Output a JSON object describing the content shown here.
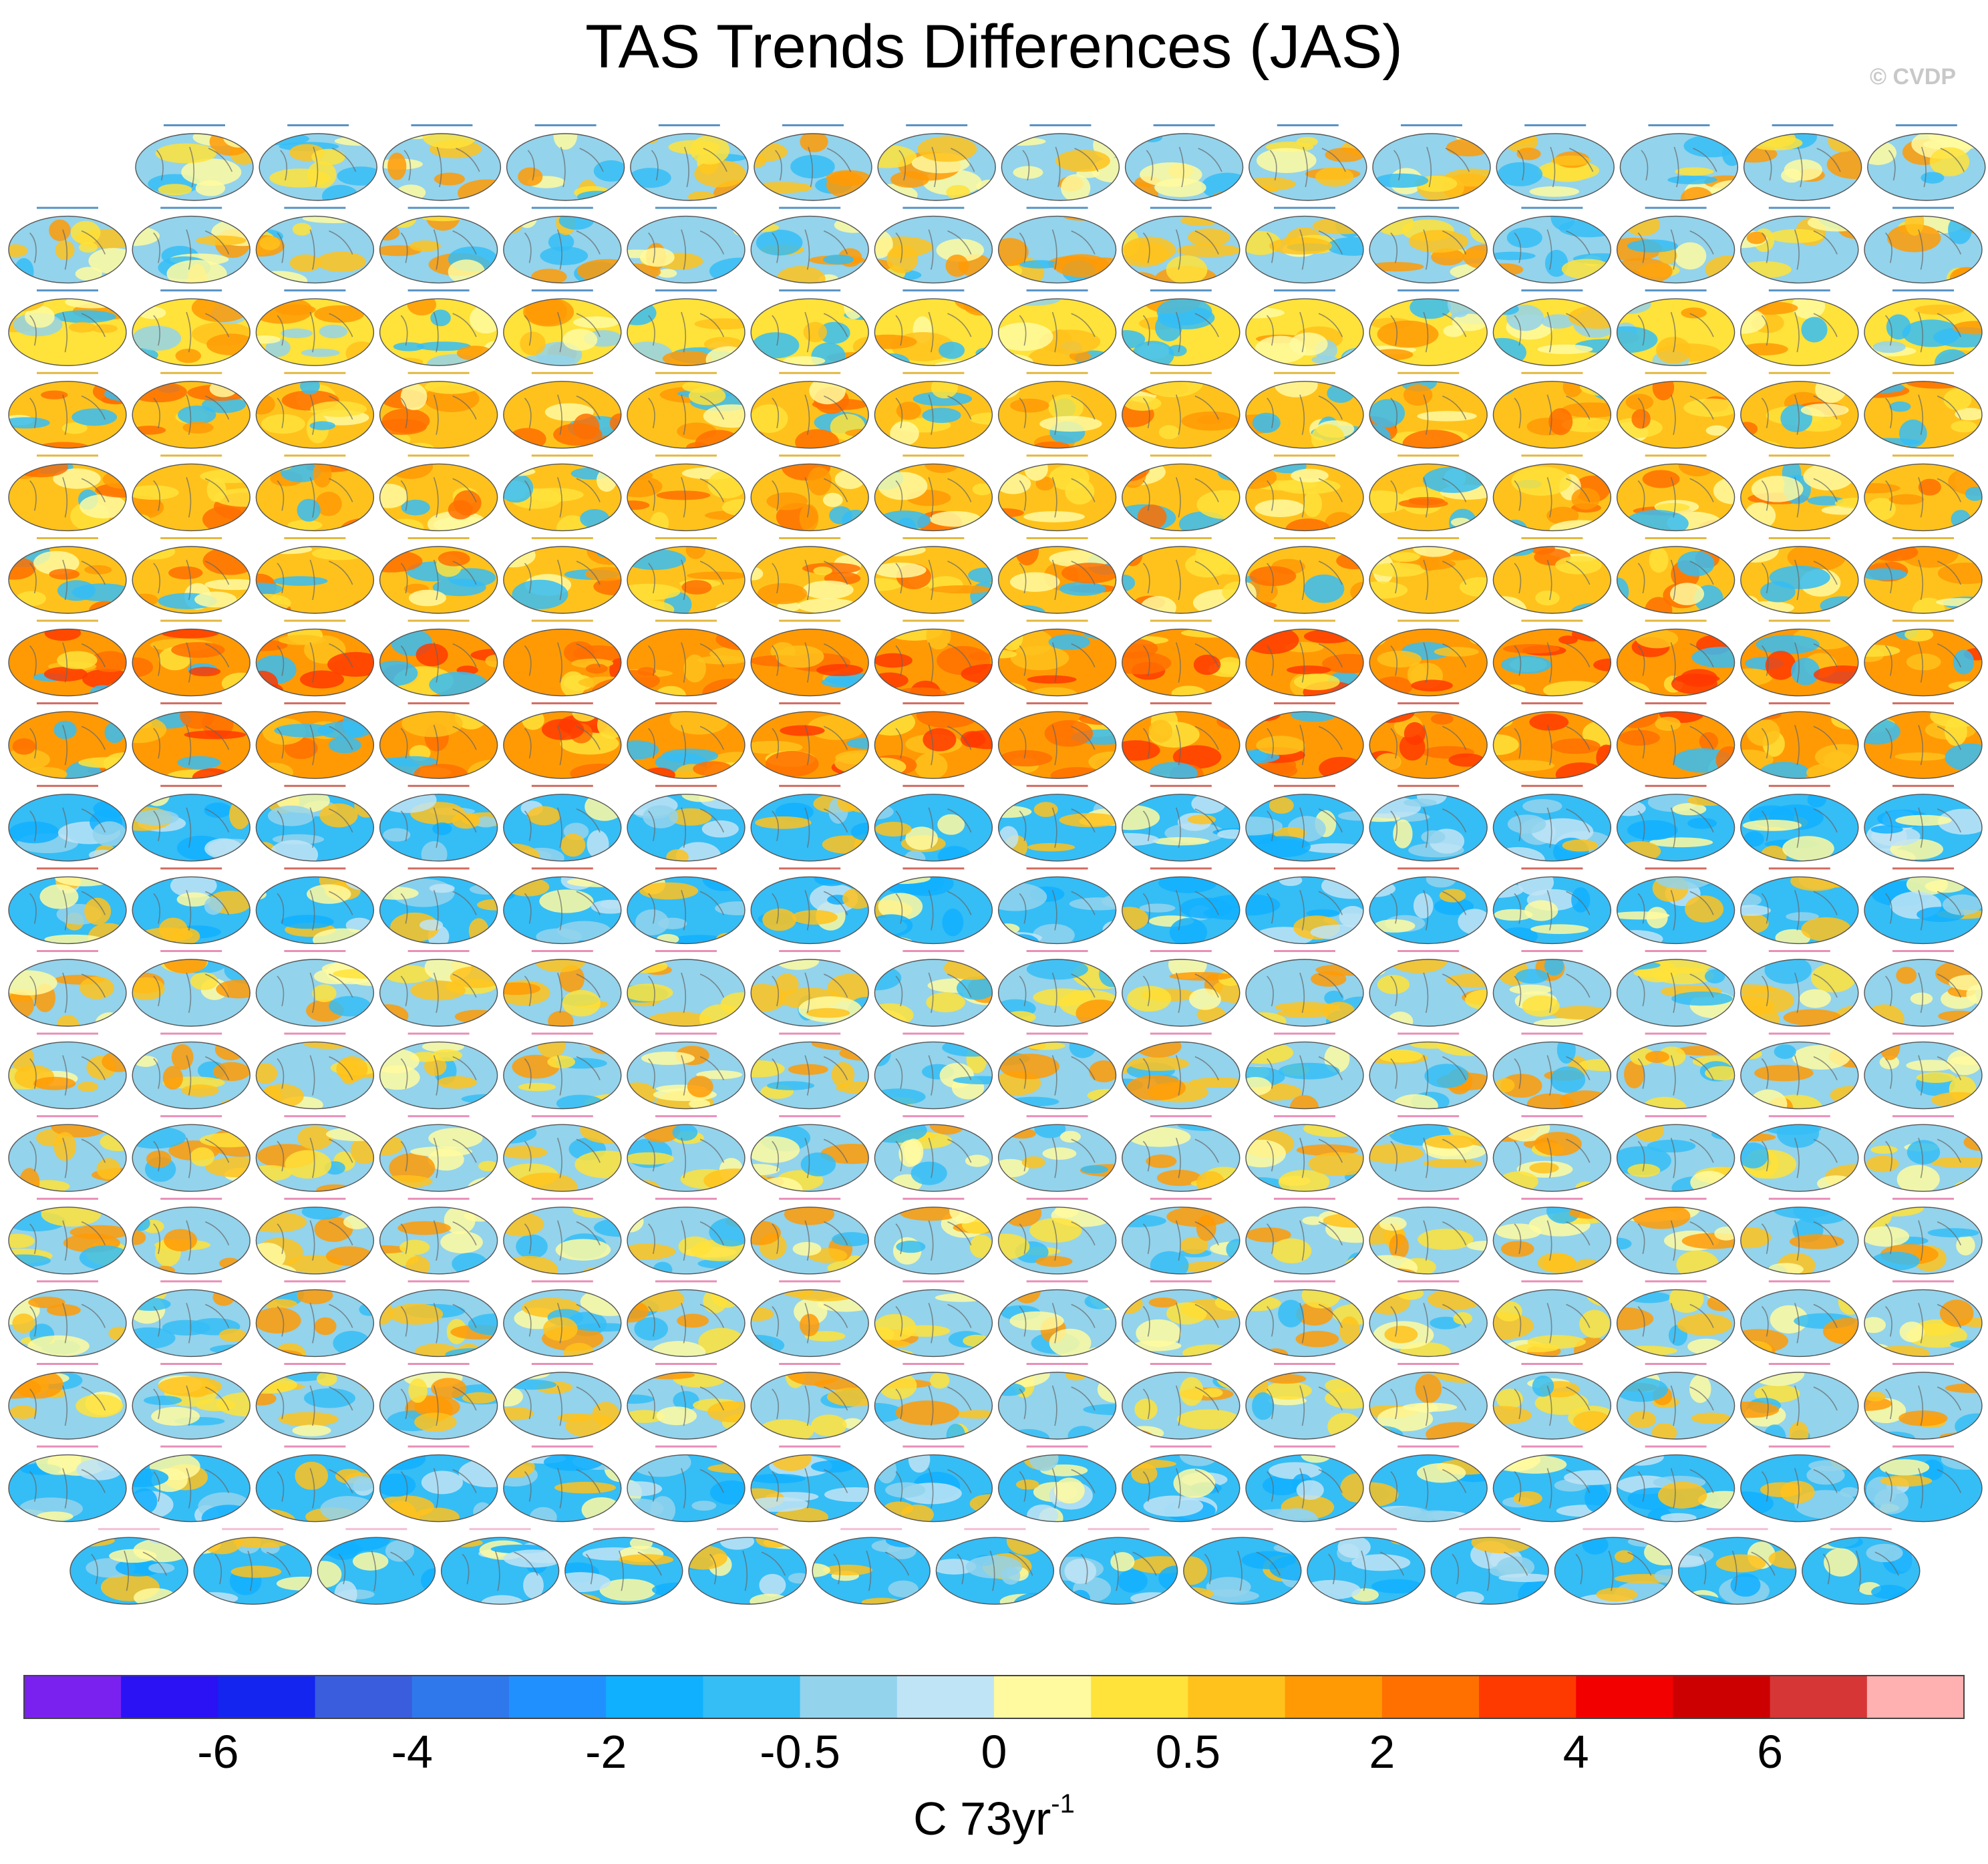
{
  "header": {
    "title": "TAS Trends Differences (JAS)",
    "credit": "© CVDP"
  },
  "colorbar": {
    "colors": [
      "#7a21f0",
      "#2a12f4",
      "#1425ef",
      "#3a5dde",
      "#2f78ec",
      "#2190ff",
      "#10b0ff",
      "#35bdf6",
      "#93d3ec",
      "#bfe4f5",
      "#fffaa0",
      "#ffe23a",
      "#ffc21c",
      "#ff9a05",
      "#ff7000",
      "#ff3a00",
      "#f20000",
      "#cc0000",
      "#d63636",
      "#ffb0b0"
    ],
    "tick_labels": [
      "-6",
      "-4",
      "-2",
      "-0.5",
      "0",
      "0.5",
      "2",
      "4",
      "6"
    ],
    "units_main": "C 73yr",
    "units_exp": "-1"
  },
  "panels": {
    "rows": [
      {
        "count": 15,
        "theme": "mix",
        "label_color": "#1f6fb0"
      },
      {
        "count": 16,
        "theme": "mix",
        "label_color": "#1f6fb0"
      },
      {
        "count": 16,
        "theme": "mix-warm",
        "label_color": "#1f6fb0"
      },
      {
        "count": 16,
        "theme": "warm",
        "label_color": "#d9a000"
      },
      {
        "count": 16,
        "theme": "warm",
        "label_color": "#d9a000"
      },
      {
        "count": 16,
        "theme": "warm",
        "label_color": "#d9a000"
      },
      {
        "count": 16,
        "theme": "hot",
        "label_color": "#d9a000"
      },
      {
        "count": 16,
        "theme": "hot-cool",
        "label_color": "#c0392b"
      },
      {
        "count": 16,
        "theme": "cool",
        "label_color": "#c0392b"
      },
      {
        "count": 16,
        "theme": "cool",
        "label_color": "#c0392b"
      },
      {
        "count": 16,
        "theme": "mix",
        "label_color": "#e06aa0"
      },
      {
        "count": 16,
        "theme": "mix",
        "label_color": "#e06aa0"
      },
      {
        "count": 16,
        "theme": "mix",
        "label_color": "#e06aa0"
      },
      {
        "count": 16,
        "theme": "mix",
        "label_color": "#e06aa0"
      },
      {
        "count": 16,
        "theme": "mix",
        "label_color": "#e06aa0"
      },
      {
        "count": 16,
        "theme": "mix",
        "label_color": "#e06aa0"
      },
      {
        "count": 16,
        "theme": "cool",
        "label_color": "#e06aa0"
      },
      {
        "count": 15,
        "theme": "cool",
        "label_color": "#f0a8c8"
      }
    ]
  }
}
